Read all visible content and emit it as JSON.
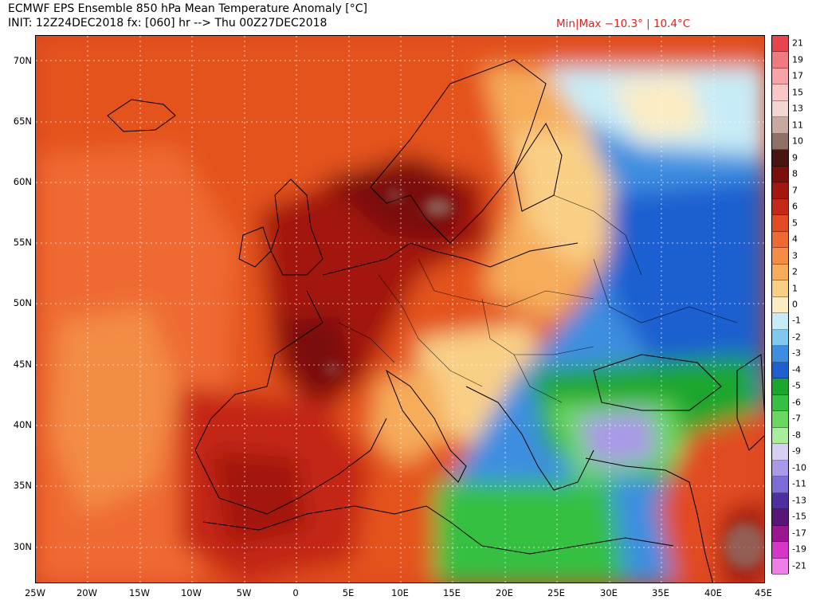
{
  "header": {
    "title": "ECMWF EPS Ensemble 850 hPa Mean Temperature Anomaly [°C]",
    "init": "INIT: 12Z24DEC2018 fx: [060] hr --> Thu 00Z27DEC2018",
    "minmax": "Min|Max −10.3° | 10.4°C"
  },
  "lat_labels": [
    "70N",
    "65N",
    "60N",
    "55N",
    "50N",
    "45N",
    "40N",
    "35N",
    "30N"
  ],
  "lon_labels": [
    "25W",
    "20W",
    "15W",
    "10W",
    "5W",
    "0",
    "5E",
    "10E",
    "15E",
    "20E",
    "25E",
    "30E",
    "35E",
    "40E",
    "45E"
  ],
  "colorbar": {
    "labels": [
      "21",
      "19",
      "17",
      "15",
      "13",
      "11",
      "10",
      "9",
      "8",
      "7",
      "6",
      "5",
      "4",
      "3",
      "2",
      "1",
      "0",
      "-1",
      "-2",
      "-3",
      "-4",
      "-5",
      "-6",
      "-7",
      "-8",
      "-9",
      "-10",
      "-11",
      "-13",
      "-15",
      "-17",
      "-19",
      "-21"
    ],
    "colors": [
      "#e8434f",
      "#f07a80",
      "#f6a4a8",
      "#fac6c8",
      "#f2d6d3",
      "#c9a89f",
      "#8f6f66",
      "#4a1411",
      "#7a0f0c",
      "#a3160f",
      "#c42818",
      "#e14b22",
      "#ef6a32",
      "#f38c44",
      "#f6ac5a",
      "#f9cf86",
      "#fcecc3",
      "#c8ecf7",
      "#7fc8f0",
      "#3d8ee0",
      "#1f5fd0",
      "#1aa62e",
      "#35c043",
      "#6ad860",
      "#a8ec9c",
      "#d7d0f2",
      "#aa98e8",
      "#7d6cd8",
      "#4e2fa0",
      "#5a1676",
      "#9c1590",
      "#d635c8",
      "#f07ee8"
    ]
  }
}
